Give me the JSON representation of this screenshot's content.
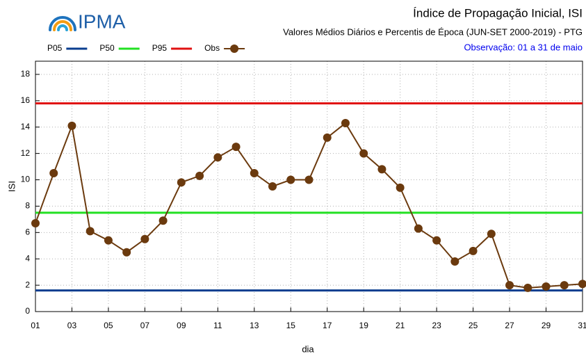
{
  "chart_data": {
    "type": "line",
    "logo": "IPMA",
    "title": "Índice de Propagação Inicial, ISI",
    "subtitle": "Valores Médios Diários e Percentis de Época (JUN-SET 2000-2019) - PTG",
    "note": "Observação: 01 a 31 de maio",
    "note_color": "#0000ee",
    "x_label": "dia",
    "y_label": "ISI",
    "x": [
      1,
      2,
      3,
      4,
      5,
      6,
      7,
      8,
      9,
      10,
      11,
      12,
      13,
      14,
      15,
      16,
      17,
      18,
      19,
      20,
      21,
      22,
      23,
      24,
      25,
      26,
      27,
      28,
      29,
      30,
      31
    ],
    "xlim": [
      1,
      31
    ],
    "xticks": [
      {
        "value": 1,
        "label": "01"
      },
      {
        "value": 3,
        "label": "03"
      },
      {
        "value": 5,
        "label": "05"
      },
      {
        "value": 7,
        "label": "07"
      },
      {
        "value": 9,
        "label": "09"
      },
      {
        "value": 11,
        "label": "11"
      },
      {
        "value": 13,
        "label": "13"
      },
      {
        "value": 15,
        "label": "15"
      },
      {
        "value": 17,
        "label": "17"
      },
      {
        "value": 19,
        "label": "19"
      },
      {
        "value": 21,
        "label": "21"
      },
      {
        "value": 23,
        "label": "23"
      },
      {
        "value": 25,
        "label": "25"
      },
      {
        "value": 27,
        "label": "27"
      },
      {
        "value": 29,
        "label": "29"
      },
      {
        "value": 31,
        "label": "31"
      }
    ],
    "ylim": [
      0,
      19
    ],
    "yticks": [
      0,
      2,
      4,
      6,
      8,
      10,
      12,
      14,
      16,
      18
    ],
    "grid": true,
    "reference_lines": [
      {
        "name": "P05",
        "color": "#0a3d8f",
        "value": 1.6
      },
      {
        "name": "P50",
        "color": "#22e022",
        "value": 7.5
      },
      {
        "name": "P95",
        "color": "#e01010",
        "value": 15.8
      }
    ],
    "series": [
      {
        "name": "Obs",
        "color": "#6b3a0e",
        "values": [
          6.7,
          10.5,
          14.1,
          6.1,
          5.4,
          4.5,
          5.5,
          6.9,
          9.8,
          10.3,
          11.7,
          12.5,
          10.5,
          9.5,
          10.0,
          10.0,
          13.2,
          14.3,
          12.0,
          10.8,
          9.4,
          6.3,
          5.4,
          3.8,
          4.6,
          5.9,
          2.0,
          1.8,
          1.9,
          2.0,
          2.1
        ]
      }
    ]
  }
}
